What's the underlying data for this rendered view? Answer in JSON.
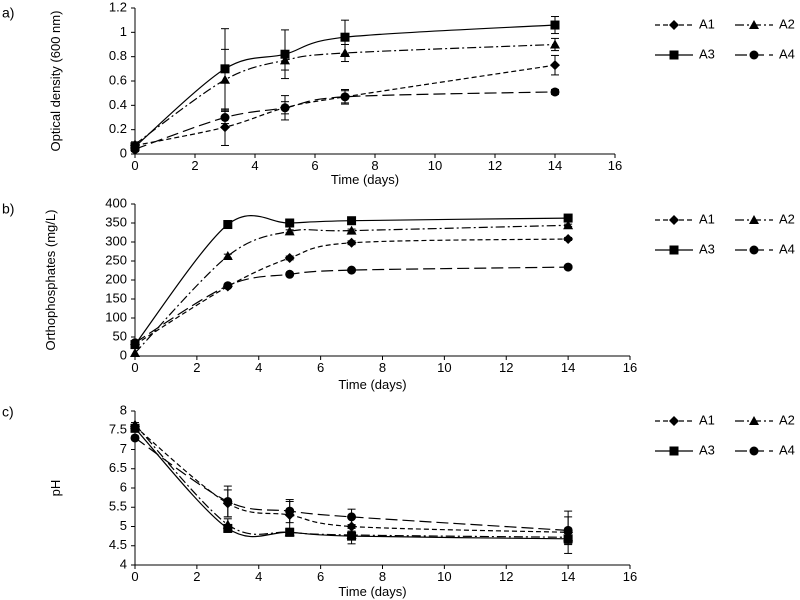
{
  "chart_data": [
    {
      "type": "line",
      "panel_label": "a)",
      "title": "",
      "xlabel": "Time (days)",
      "ylabel": "Optical density (600 nm)",
      "xlim": [
        0,
        16
      ],
      "ylim": [
        0,
        1.2
      ],
      "xticks": [
        "0",
        "2",
        "4",
        "6",
        "8",
        "10",
        "12",
        "14",
        "16"
      ],
      "yticks": [
        "0",
        "0.2",
        "0.4",
        "0.6",
        "0.8",
        "1",
        "1.2"
      ],
      "x": [
        0,
        3,
        5,
        7,
        14
      ],
      "series": [
        {
          "name": "A1",
          "values": [
            0.07,
            0.22,
            0.38,
            0.47,
            0.73
          ],
          "err": [
            0.02,
            0.15,
            0.05,
            0.06,
            0.08
          ]
        },
        {
          "name": "A2",
          "values": [
            0.08,
            0.61,
            0.77,
            0.83,
            0.9
          ],
          "err": [
            0.02,
            0.25,
            0.08,
            0.07,
            0.05
          ]
        },
        {
          "name": "A3",
          "values": [
            0.06,
            0.7,
            0.82,
            0.96,
            1.06
          ],
          "err": [
            0.02,
            0.33,
            0.2,
            0.14,
            0.07
          ]
        },
        {
          "name": "A4",
          "values": [
            0.04,
            0.3,
            0.38,
            0.47,
            0.51
          ],
          "err": [
            0.02,
            0.05,
            0.1,
            0.05,
            0.02
          ]
        }
      ]
    },
    {
      "type": "line",
      "panel_label": "b)",
      "title": "",
      "xlabel": "Time (days)",
      "ylabel": "Orthophosphates (mg/L)",
      "xlim": [
        0,
        16
      ],
      "ylim": [
        0,
        400
      ],
      "xticks": [
        "0",
        "2",
        "4",
        "6",
        "8",
        "10",
        "12",
        "14",
        "16"
      ],
      "yticks": [
        "0",
        "50",
        "100",
        "150",
        "200",
        "250",
        "300",
        "350",
        "400"
      ],
      "x": [
        0,
        3,
        5,
        7,
        14
      ],
      "series": [
        {
          "name": "A1",
          "values": [
            30,
            183,
            258,
            298,
            308
          ],
          "err": [
            0,
            3,
            5,
            5,
            4
          ]
        },
        {
          "name": "A2",
          "values": [
            8,
            263,
            328,
            330,
            344
          ],
          "err": [
            0,
            5,
            4,
            4,
            3
          ]
        },
        {
          "name": "A3",
          "values": [
            30,
            346,
            350,
            356,
            363
          ],
          "err": [
            0,
            3,
            5,
            8,
            3
          ]
        },
        {
          "name": "A4",
          "values": [
            35,
            185,
            215,
            226,
            234
          ],
          "err": [
            0,
            3,
            3,
            3,
            3
          ]
        }
      ]
    },
    {
      "type": "line",
      "panel_label": "c)",
      "title": "",
      "xlabel": "Time (days)",
      "ylabel": "pH",
      "xlim": [
        0,
        16
      ],
      "ylim": [
        4,
        8
      ],
      "xticks": [
        "0",
        "2",
        "4",
        "6",
        "8",
        "10",
        "12",
        "14",
        "16"
      ],
      "yticks": [
        "4",
        "4.5",
        "5",
        "5.5",
        "6",
        "6.5",
        "7",
        "7.5",
        "8"
      ],
      "x": [
        0,
        3,
        5,
        7,
        14
      ],
      "series": [
        {
          "name": "A1",
          "values": [
            7.6,
            5.6,
            5.3,
            5.0,
            4.85
          ],
          "err": [
            0.05,
            0.35,
            0.35,
            0.25,
            0.55
          ]
        },
        {
          "name": "A2",
          "values": [
            7.65,
            5.05,
            4.85,
            4.78,
            4.72
          ],
          "err": [
            0.05,
            0.15,
            0.1,
            0.1,
            0.1
          ]
        },
        {
          "name": "A3",
          "values": [
            7.55,
            4.95,
            4.85,
            4.75,
            4.68
          ],
          "err": [
            0.05,
            0.1,
            0.1,
            0.2,
            0.15
          ]
        },
        {
          "name": "A4",
          "values": [
            7.3,
            5.65,
            5.4,
            5.25,
            4.9
          ],
          "err": [
            0.05,
            0.4,
            0.3,
            0.2,
            0.35
          ]
        }
      ]
    }
  ],
  "legend": {
    "items": [
      {
        "label": "A1",
        "marker": "diamond",
        "dash": "5 3"
      },
      {
        "label": "A2",
        "marker": "triangle",
        "dash": "9 3 2 3"
      },
      {
        "label": "A3",
        "marker": "square",
        "dash": ""
      },
      {
        "label": "A4",
        "marker": "circle",
        "dash": "12 5"
      }
    ]
  }
}
